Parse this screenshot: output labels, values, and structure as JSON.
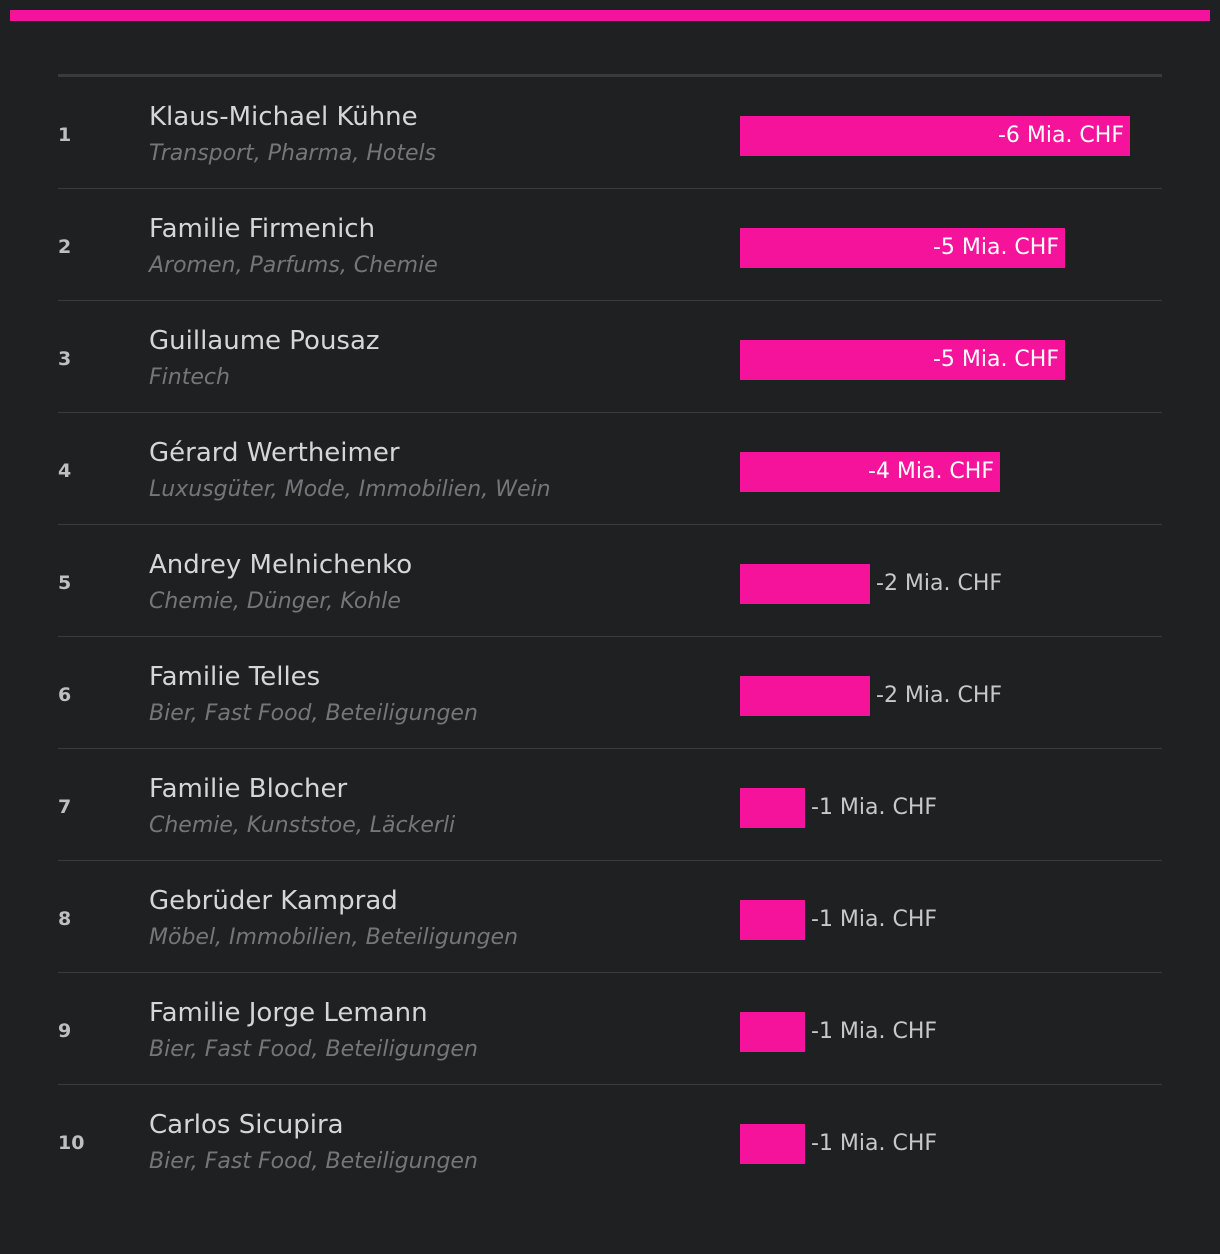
{
  "accent_color": "#f5139b",
  "chart_data": {
    "type": "bar",
    "orientation": "horizontal",
    "unit": "Mia. CHF",
    "rows": [
      {
        "rank": "1",
        "name": "Klaus-Michael Kühne",
        "sectors": "Transport, Pharma, Hotels",
        "value": -6,
        "label": "-6 Mia. CHF"
      },
      {
        "rank": "2",
        "name": "Familie Firmenich",
        "sectors": "Aromen, Parfums, Chemie",
        "value": -5,
        "label": "-5 Mia. CHF"
      },
      {
        "rank": "3",
        "name": "Guillaume Pousaz",
        "sectors": "Fintech",
        "value": -5,
        "label": "-5 Mia. CHF"
      },
      {
        "rank": "4",
        "name": "Gérard Wertheimer",
        "sectors": "Luxusgüter, Mode, Immobilien, Wein",
        "value": -4,
        "label": "-4 Mia. CHF"
      },
      {
        "rank": "5",
        "name": "Andrey Melnichenko",
        "sectors": "Chemie, Dünger, Kohle",
        "value": -2,
        "label": "-2 Mia. CHF"
      },
      {
        "rank": "6",
        "name": "Familie Telles",
        "sectors": "Bier, Fast Food, Beteiligungen",
        "value": -2,
        "label": "-2 Mia. CHF"
      },
      {
        "rank": "7",
        "name": "Familie Blocher",
        "sectors": "Chemie, Kunststoe, Läckerli",
        "value": -1,
        "label": "-1 Mia. CHF"
      },
      {
        "rank": "8",
        "name": "Gebrüder Kamprad",
        "sectors": "Möbel, Immobilien, Beteiligungen",
        "value": -1,
        "label": "-1 Mia. CHF"
      },
      {
        "rank": "9",
        "name": "Familie Jorge Lemann",
        "sectors": "Bier, Fast Food, Beteiligungen",
        "value": -1,
        "label": "-1 Mia. CHF"
      },
      {
        "rank": "10",
        "name": "Carlos Sicupira",
        "sectors": "Bier, Fast Food, Beteiligungen",
        "value": -1,
        "label": "-1 Mia. CHF"
      }
    ]
  }
}
